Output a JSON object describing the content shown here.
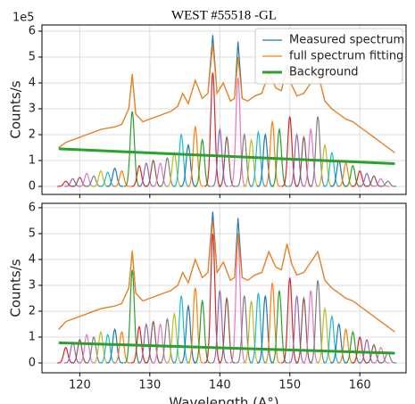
{
  "chart_data": [
    {
      "type": "line",
      "title": "WEST #55518 -GL",
      "ylabel": "Counts/s",
      "y_offset": "1e5",
      "xlim": [
        114.6,
        166.6
      ],
      "ylim": [
        -0.31,
        6.24
      ],
      "xticks": [
        120,
        130,
        140,
        150,
        160
      ],
      "yticks": [
        0,
        1,
        2,
        3,
        4,
        5,
        6
      ],
      "grid": true,
      "legend": "upper right",
      "x": [
        117,
        118,
        119,
        120,
        121,
        122,
        123,
        124,
        125,
        126,
        127,
        127.5,
        128,
        129,
        130,
        131,
        132,
        133,
        134,
        134.7,
        135.5,
        136.5,
        137.5,
        138.3,
        139,
        139.6,
        140.5,
        141.5,
        142.1,
        142.6,
        143.2,
        144,
        145,
        146,
        147,
        148,
        148.8,
        149.6,
        150.3,
        151,
        152,
        153,
        154,
        155,
        156,
        157,
        158,
        159,
        160,
        161,
        162,
        163,
        164,
        165
      ],
      "series": [
        {
          "name": "Measured spectrum",
          "color": "#1f77b4",
          "width": 1.2,
          "values": [
            1.5,
            1.7,
            1.8,
            1.9,
            2.0,
            2.1,
            2.2,
            2.25,
            2.3,
            2.4,
            3.0,
            4.3,
            2.8,
            2.5,
            2.6,
            2.7,
            2.8,
            2.9,
            3.1,
            3.6,
            3.2,
            4.1,
            3.4,
            3.6,
            5.85,
            3.6,
            4.0,
            3.3,
            3.4,
            5.6,
            3.4,
            3.3,
            3.5,
            3.6,
            4.4,
            3.8,
            3.7,
            4.7,
            3.9,
            3.5,
            3.6,
            4.0,
            4.4,
            3.3,
            3.0,
            2.8,
            2.6,
            2.5,
            2.3,
            2.1,
            1.9,
            1.7,
            1.5,
            1.3
          ]
        },
        {
          "name": "full spectrum fitting",
          "color": "#ff7f0e",
          "width": 1.2,
          "values": [
            1.5,
            1.7,
            1.8,
            1.9,
            2.0,
            2.1,
            2.2,
            2.25,
            2.3,
            2.4,
            3.0,
            4.35,
            2.8,
            2.5,
            2.6,
            2.7,
            2.8,
            2.9,
            3.1,
            3.6,
            3.2,
            4.1,
            3.4,
            3.6,
            5.5,
            3.6,
            4.0,
            3.3,
            3.4,
            5.0,
            3.4,
            3.3,
            3.5,
            3.6,
            4.4,
            3.8,
            3.7,
            4.7,
            3.9,
            3.5,
            3.6,
            4.0,
            4.4,
            3.3,
            3.0,
            2.8,
            2.6,
            2.5,
            2.3,
            2.1,
            1.9,
            1.7,
            1.5,
            1.3
          ]
        },
        {
          "name": "Background",
          "color": "#2ca02c",
          "width": 3,
          "x": [
            117,
            165
          ],
          "values": [
            1.45,
            0.88
          ]
        }
      ],
      "components": {
        "colors": [
          "#d62728",
          "#9467bd",
          "#8c564b",
          "#e377c2",
          "#7f7f7f",
          "#bcbd22",
          "#17becf",
          "#1f77b4",
          "#ff7f0e",
          "#2ca02c"
        ],
        "x": [
          118,
          119,
          120,
          121,
          122,
          123,
          124,
          125,
          126,
          127.5,
          128.5,
          129.5,
          130.5,
          131.5,
          132.5,
          133.5,
          134.5,
          135.5,
          136.5,
          137.5,
          139,
          140,
          141,
          142.6,
          143.5,
          144.5,
          145.5,
          146.5,
          147.5,
          148.5,
          150,
          151,
          152,
          153,
          154,
          155,
          156,
          157,
          158,
          159,
          160,
          161,
          162,
          163,
          164
        ],
        "values": [
          0.2,
          0.3,
          0.35,
          0.5,
          0.4,
          0.6,
          0.55,
          0.7,
          0.6,
          2.9,
          0.8,
          0.9,
          1.0,
          0.9,
          1.1,
          1.3,
          2.0,
          1.6,
          2.3,
          1.8,
          4.4,
          2.2,
          1.9,
          4.2,
          2.0,
          1.8,
          2.1,
          2.0,
          2.5,
          2.2,
          2.7,
          2.0,
          1.9,
          2.2,
          2.7,
          1.6,
          1.3,
          1.0,
          0.9,
          0.8,
          0.6,
          0.5,
          0.4,
          0.3,
          0.2
        ]
      }
    },
    {
      "type": "line",
      "ylabel": "Counts/s",
      "xlabel": "Wavelength (A°)",
      "xlim": [
        114.6,
        166.6
      ],
      "ylim": [
        -0.38,
        6.17
      ],
      "xticks": [
        120,
        130,
        140,
        150,
        160
      ],
      "yticks": [
        0,
        1,
        2,
        3,
        4,
        5,
        6
      ],
      "grid": true,
      "x": [
        117,
        118,
        119,
        120,
        121,
        122,
        123,
        124,
        125,
        126,
        127,
        127.5,
        128,
        129,
        130,
        131,
        132,
        133,
        134,
        134.7,
        135.5,
        136.5,
        137.5,
        138.3,
        139,
        139.6,
        140.5,
        141.5,
        142.1,
        142.6,
        143.2,
        144,
        145,
        146,
        147,
        148,
        148.8,
        149.6,
        150.3,
        151,
        152,
        153,
        154,
        155,
        156,
        157,
        158,
        159,
        160,
        161,
        162,
        163,
        164,
        165
      ],
      "series": [
        {
          "color": "#1f77b4",
          "width": 1.2,
          "values": [
            1.3,
            1.6,
            1.7,
            1.8,
            1.9,
            2.0,
            2.1,
            2.15,
            2.2,
            2.3,
            2.9,
            4.3,
            2.7,
            2.4,
            2.5,
            2.6,
            2.7,
            2.8,
            3.0,
            3.5,
            3.1,
            4.0,
            3.3,
            3.5,
            5.85,
            3.5,
            3.9,
            3.2,
            3.3,
            5.6,
            3.3,
            3.2,
            3.4,
            3.5,
            4.3,
            3.7,
            3.6,
            4.6,
            3.8,
            3.4,
            3.5,
            3.9,
            4.3,
            3.2,
            2.9,
            2.7,
            2.5,
            2.4,
            2.2,
            2.0,
            1.8,
            1.6,
            1.4,
            1.2
          ]
        },
        {
          "color": "#ff7f0e",
          "width": 1.2,
          "values": [
            1.3,
            1.6,
            1.7,
            1.8,
            1.9,
            2.0,
            2.1,
            2.15,
            2.2,
            2.3,
            2.9,
            4.35,
            2.7,
            2.4,
            2.5,
            2.6,
            2.7,
            2.8,
            3.0,
            3.5,
            3.1,
            4.0,
            3.3,
            3.5,
            5.5,
            3.5,
            3.9,
            3.2,
            3.3,
            5.0,
            3.3,
            3.2,
            3.4,
            3.5,
            4.3,
            3.7,
            3.6,
            4.6,
            3.8,
            3.4,
            3.5,
            3.9,
            4.3,
            3.2,
            2.9,
            2.7,
            2.5,
            2.4,
            2.2,
            2.0,
            1.8,
            1.6,
            1.4,
            1.2
          ]
        },
        {
          "color": "#2ca02c",
          "width": 3,
          "x": [
            117,
            165
          ],
          "values": [
            0.78,
            0.38
          ]
        }
      ],
      "components": {
        "colors": [
          "#d62728",
          "#9467bd",
          "#8c564b",
          "#e377c2",
          "#7f7f7f",
          "#bcbd22",
          "#17becf",
          "#1f77b4",
          "#ff7f0e",
          "#2ca02c"
        ],
        "x": [
          118,
          119,
          120,
          121,
          122,
          123,
          124,
          125,
          126,
          127.5,
          128.5,
          129.5,
          130.5,
          131.5,
          132.5,
          133.5,
          134.5,
          135.5,
          136.5,
          137.5,
          139,
          140,
          141,
          142.6,
          143.5,
          144.5,
          145.5,
          146.5,
          147.5,
          148.5,
          150,
          151,
          152,
          153,
          154,
          155,
          156,
          157,
          158,
          159,
          160,
          161,
          162,
          163,
          164
        ],
        "values": [
          0.6,
          0.8,
          0.9,
          1.1,
          1.0,
          1.2,
          1.1,
          1.3,
          1.2,
          3.6,
          1.4,
          1.5,
          1.6,
          1.5,
          1.7,
          1.9,
          2.6,
          2.2,
          2.9,
          2.4,
          5.0,
          2.8,
          2.5,
          4.8,
          2.6,
          2.4,
          2.7,
          2.6,
          3.1,
          2.8,
          3.3,
          2.6,
          2.5,
          2.8,
          3.2,
          2.1,
          1.8,
          1.5,
          1.3,
          1.2,
          1.0,
          0.9,
          0.7,
          0.6,
          0.4
        ]
      }
    }
  ]
}
